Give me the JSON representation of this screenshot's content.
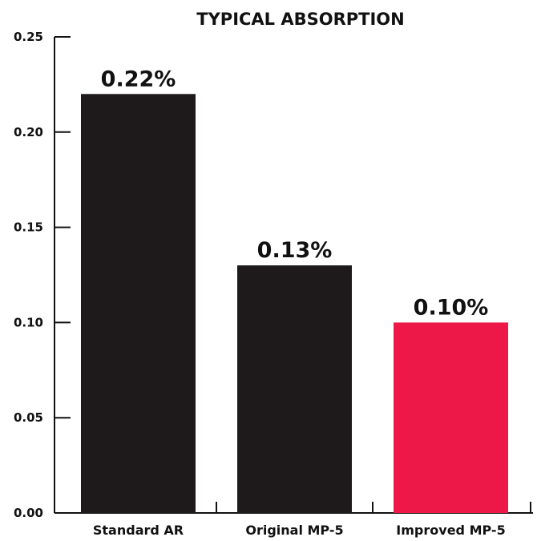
{
  "chart_data": {
    "type": "bar",
    "title": "TYPICAL ABSORPTION",
    "xlabel": "",
    "ylabel": "",
    "categories": [
      "Standard AR",
      "Original MP-5",
      "Improved MP-5"
    ],
    "values": [
      0.22,
      0.13,
      0.1
    ],
    "data_labels": [
      "0.22%",
      "0.13%",
      "0.10%"
    ],
    "bar_colors": [
      "#1e1a1b",
      "#1e1a1b",
      "#ee1848"
    ],
    "ylim": [
      0,
      0.25
    ],
    "yticks": [
      0.0,
      0.05,
      0.1,
      0.15,
      0.2,
      0.25
    ],
    "ytick_labels": [
      "0.00",
      "0.05",
      "0.10",
      "0.15",
      "0.20",
      "0.25"
    ],
    "grid": false,
    "legend": "none"
  }
}
